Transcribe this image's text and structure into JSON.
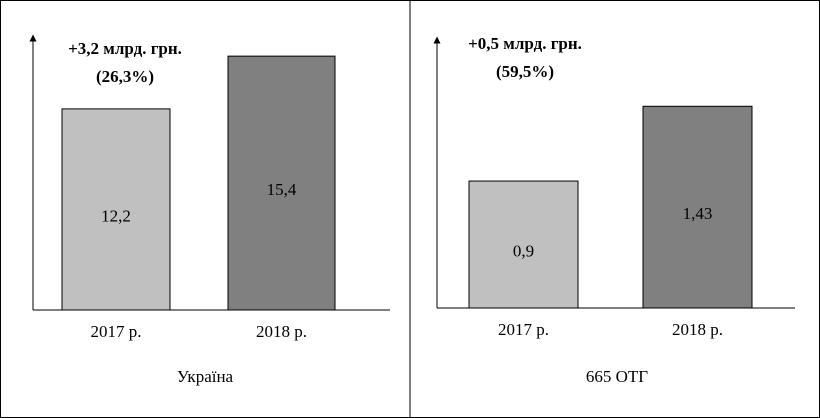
{
  "chart_data": [
    {
      "type": "bar",
      "caption": "Україна",
      "annotations": [
        "+3,2 млрд. грн.",
        "(26,3%)"
      ],
      "categories": [
        "2017 р.",
        "2018 р."
      ],
      "values": [
        12.2,
        15.4
      ],
      "value_labels": [
        "12,2",
        "15,4"
      ],
      "colors": [
        "#c0c0c0",
        "#808080"
      ],
      "ylim": [
        0,
        16.5
      ]
    },
    {
      "type": "bar",
      "caption": "665 ОТГ",
      "annotations": [
        "+0,5 млрд. грн.",
        "(59,5%)"
      ],
      "categories": [
        "2017 р.",
        "2018 р."
      ],
      "values": [
        0.9,
        1.43
      ],
      "value_labels": [
        "0,9",
        "1,43"
      ],
      "colors": [
        "#c0c0c0",
        "#808080"
      ],
      "ylim": [
        0,
        1.9
      ]
    }
  ]
}
